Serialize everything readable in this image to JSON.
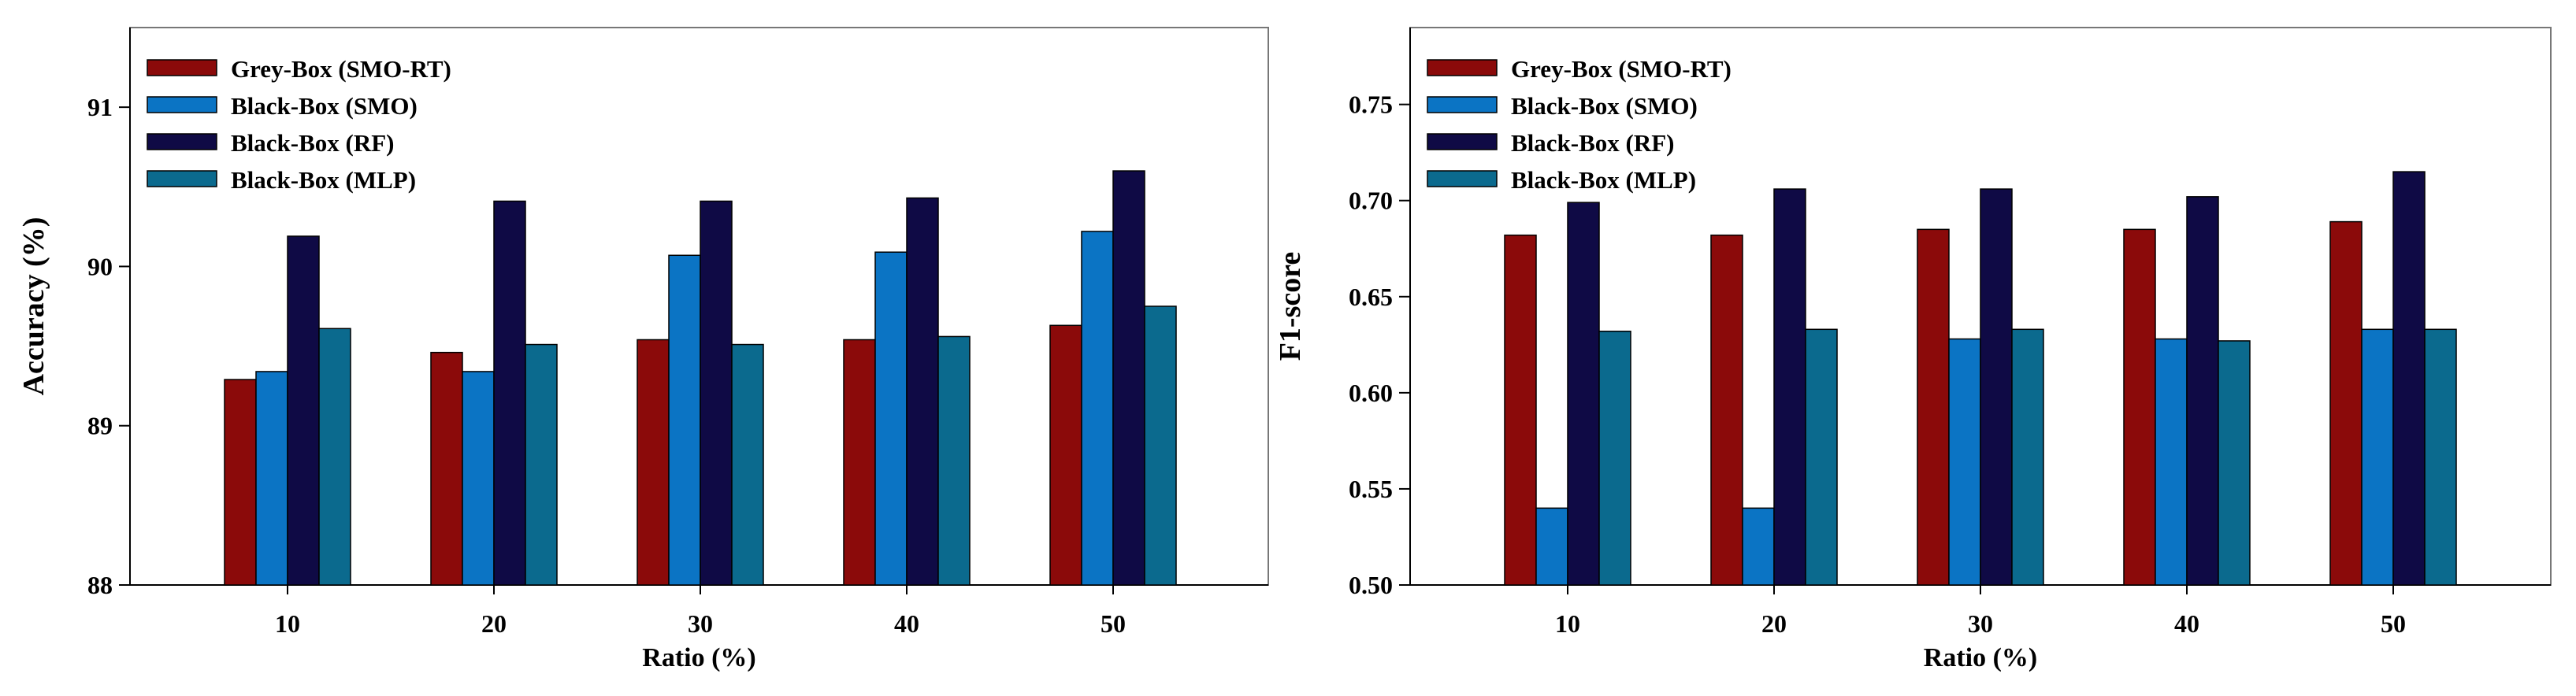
{
  "colors": {
    "grey_smo_rt": "#8b0a0a",
    "black_smo": "#0b74c4",
    "black_rf": "#0f0a45",
    "black_mlp": "#0b6a8e",
    "frame": "#777777"
  },
  "chart_data": [
    {
      "type": "bar",
      "title": "",
      "xlabel": "Ratio (%)",
      "ylabel": "Accuracy (%)",
      "categories": [
        "10",
        "20",
        "30",
        "40",
        "50"
      ],
      "ylim": [
        88,
        91.5
      ],
      "yticks": [
        88,
        89,
        90,
        91
      ],
      "ytick_labels": [
        "88",
        "89",
        "90",
        "91"
      ],
      "legend_position": "top-left",
      "series": [
        {
          "name": "Grey-Box (SMO-RT)",
          "color_key": "grey_smo_rt",
          "values": [
            89.29,
            89.46,
            89.54,
            89.54,
            89.63
          ]
        },
        {
          "name": "Black-Box (SMO)",
          "color_key": "black_smo",
          "values": [
            89.34,
            89.34,
            90.07,
            90.09,
            90.22
          ]
        },
        {
          "name": "Black-Box (RF)",
          "color_key": "black_rf",
          "values": [
            90.19,
            90.41,
            90.41,
            90.43,
            90.6
          ]
        },
        {
          "name": "Black-Box (MLP)",
          "color_key": "black_mlp",
          "values": [
            89.61,
            89.51,
            89.51,
            89.56,
            89.75
          ]
        }
      ]
    },
    {
      "type": "bar",
      "title": "",
      "xlabel": "Ratio (%)",
      "ylabel": "F1-score",
      "categories": [
        "10",
        "20",
        "30",
        "40",
        "50"
      ],
      "ylim": [
        0.5,
        0.79
      ],
      "yticks": [
        0.5,
        0.55,
        0.6,
        0.65,
        0.7,
        0.75
      ],
      "ytick_labels": [
        "0.50",
        "0.55",
        "0.60",
        "0.65",
        "0.70",
        "0.75"
      ],
      "legend_position": "top-left",
      "series": [
        {
          "name": "Grey-Box (SMO-RT)",
          "color_key": "grey_smo_rt",
          "values": [
            0.682,
            0.682,
            0.685,
            0.685,
            0.689
          ]
        },
        {
          "name": "Black-Box (SMO)",
          "color_key": "black_smo",
          "values": [
            0.54,
            0.54,
            0.628,
            0.628,
            0.633
          ]
        },
        {
          "name": "Black-Box (RF)",
          "color_key": "black_rf",
          "values": [
            0.699,
            0.706,
            0.706,
            0.702,
            0.715
          ]
        },
        {
          "name": "Black-Box (MLP)",
          "color_key": "black_mlp",
          "values": [
            0.632,
            0.633,
            0.633,
            0.627,
            0.633
          ]
        }
      ]
    }
  ]
}
